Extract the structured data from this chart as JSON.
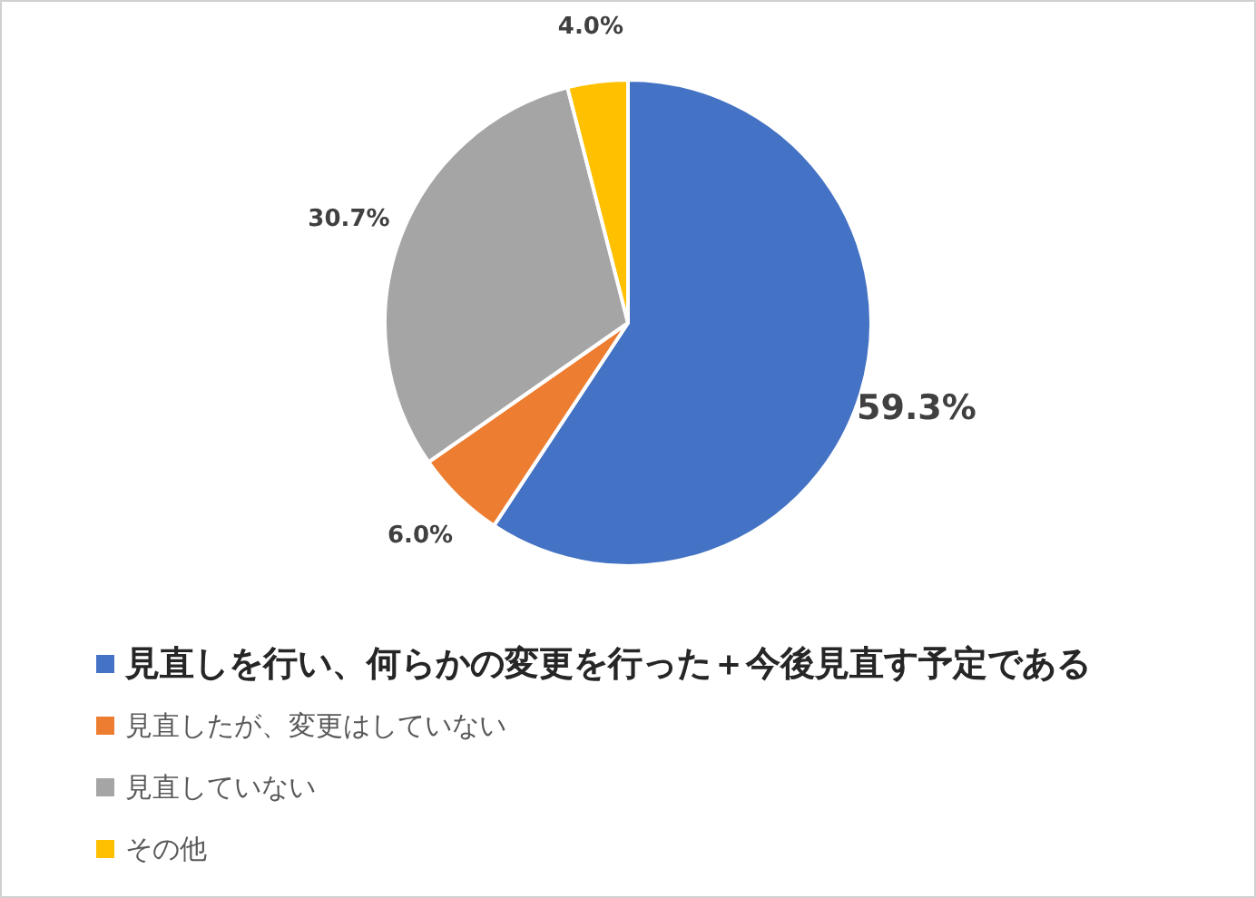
{
  "chart_data": {
    "type": "pie",
    "categories": [
      "見直しを行い、何らかの変更を行った＋今後見直す予定である",
      "見直したが、変更はしていない",
      "見直していない",
      "その他"
    ],
    "values": [
      59.3,
      6.0,
      30.7,
      4.0
    ],
    "colors": [
      "#4472c4",
      "#ed7d31",
      "#a5a5a5",
      "#ffc000"
    ],
    "value_labels": [
      "59.3%",
      "6.0%",
      "30.7%",
      "4.0%"
    ],
    "legend": "bottom"
  }
}
